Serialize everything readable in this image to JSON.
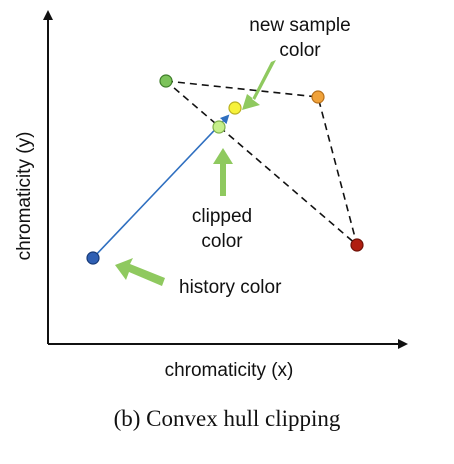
{
  "axes": {
    "xlabel": "chromaticity (x)",
    "ylabel": "chromaticity (y)"
  },
  "annotations": {
    "new_sample_line1": "new sample",
    "new_sample_line2": "color",
    "clipped_line1": "clipped",
    "clipped_line2": "color",
    "history": "history color"
  },
  "caption": "(b) Convex hull clipping",
  "colors": {
    "hull_vertex_green": "#7cc35a",
    "hull_vertex_orange": "#f0a23a",
    "hull_vertex_red": "#b01e10",
    "history_point": "#2f5fb3",
    "new_sample_point": "#f7f23a",
    "clipped_point": "#c6ef8a",
    "trace_line": "#2f6fc0",
    "callout_arrow": "#8fc95f"
  }
}
